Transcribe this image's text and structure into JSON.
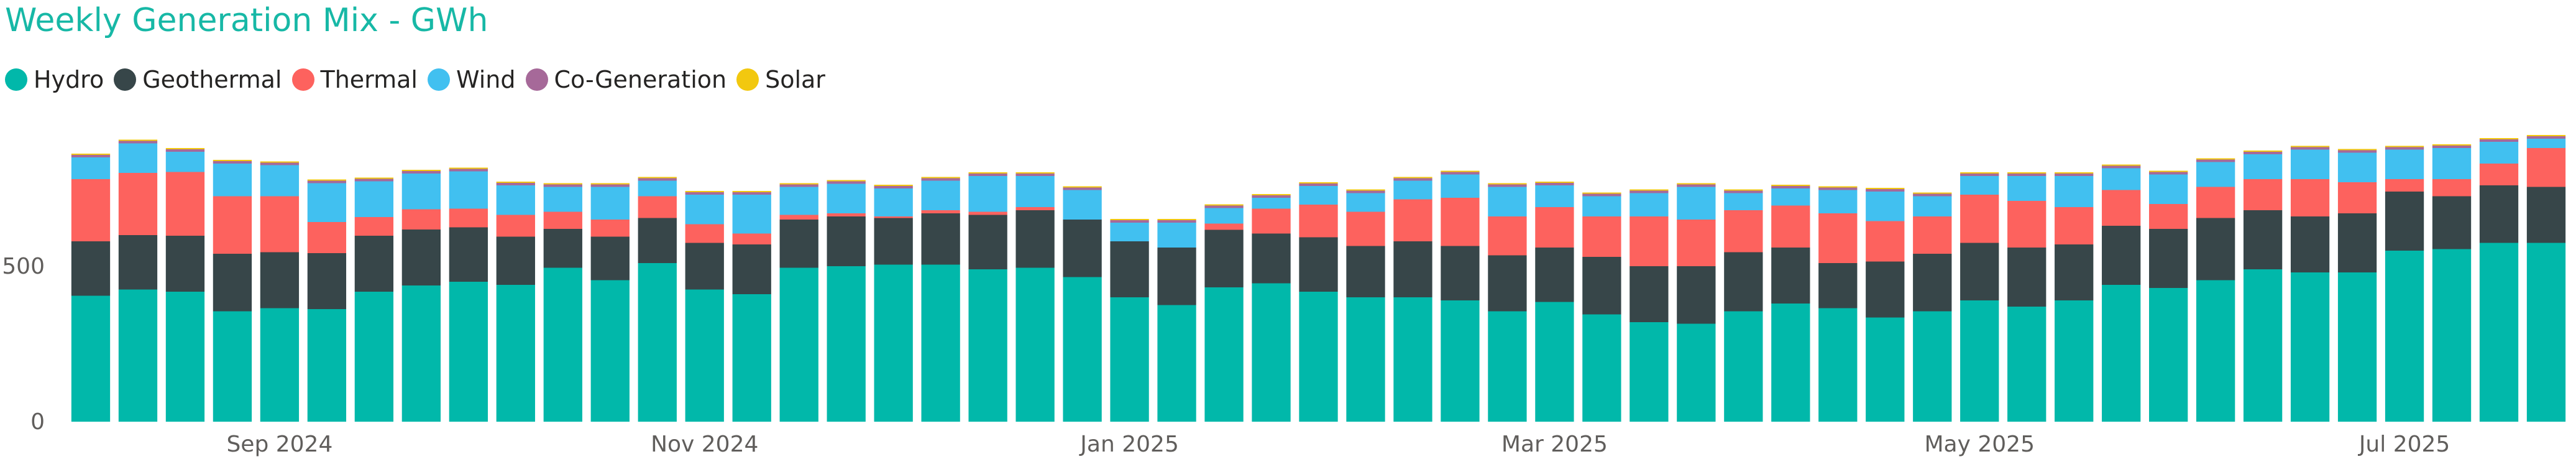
{
  "chart_data": {
    "type": "bar",
    "stacked": true,
    "title": "Weekly Generation Mix - GWh",
    "title_color": "#17B8A6",
    "legend_position": "top-left",
    "x_tick_labels": [
      "Sep 2024",
      "Nov 2024",
      "Jan 2025",
      "Mar 2025",
      "May 2025",
      "Jul 2025"
    ],
    "x_tick_positions": [
      4.5,
      13.5,
      22.5,
      31.5,
      40.5,
      49.5
    ],
    "y_ticks": [
      0,
      500
    ],
    "ylim": [
      0,
      960
    ],
    "grid": false,
    "series": [
      {
        "name": "Hydro",
        "color": "#01B8AA",
        "values": [
          405,
          425,
          418,
          355,
          365,
          362,
          418,
          438,
          450,
          440,
          495,
          455,
          510,
          425,
          410,
          495,
          500,
          505,
          505,
          490,
          495,
          465,
          400,
          375,
          432,
          445,
          418,
          400,
          400,
          390,
          355,
          385,
          345,
          320,
          315,
          355,
          380,
          365,
          335,
          355,
          390,
          370,
          390,
          440,
          430,
          455,
          490,
          480,
          480,
          550,
          555,
          575,
          575
        ]
      },
      {
        "name": "Geothermal",
        "color": "#374649",
        "values": [
          175,
          175,
          180,
          185,
          180,
          180,
          180,
          180,
          175,
          155,
          125,
          140,
          145,
          150,
          160,
          155,
          160,
          150,
          165,
          175,
          185,
          185,
          180,
          185,
          185,
          160,
          175,
          165,
          180,
          175,
          180,
          175,
          185,
          180,
          185,
          190,
          180,
          145,
          180,
          185,
          185,
          190,
          180,
          190,
          190,
          200,
          190,
          180,
          190,
          190,
          170,
          185,
          180
        ]
      },
      {
        "name": "Thermal",
        "color": "#FD625E",
        "values": [
          200,
          200,
          205,
          185,
          180,
          100,
          60,
          65,
          60,
          70,
          55,
          55,
          70,
          60,
          35,
          15,
          10,
          5,
          10,
          10,
          10,
          0,
          0,
          0,
          20,
          80,
          105,
          110,
          135,
          155,
          125,
          130,
          130,
          160,
          150,
          135,
          135,
          160,
          130,
          120,
          155,
          150,
          120,
          115,
          80,
          100,
          100,
          120,
          100,
          40,
          55,
          70,
          125
        ]
      },
      {
        "name": "Wind",
        "color": "#41C0F0",
        "values": [
          70,
          95,
          65,
          105,
          100,
          125,
          115,
          115,
          120,
          95,
          80,
          105,
          50,
          95,
          125,
          90,
          95,
          90,
          95,
          115,
          100,
          95,
          60,
          80,
          50,
          35,
          60,
          60,
          60,
          75,
          95,
          70,
          65,
          75,
          105,
          55,
          55,
          75,
          95,
          65,
          60,
          80,
          100,
          70,
          95,
          80,
          80,
          95,
          95,
          95,
          100,
          70,
          30
        ]
      },
      {
        "name": "Co-Generation",
        "color": "#A66999",
        "values": [
          8,
          8,
          8,
          8,
          8,
          8,
          8,
          8,
          8,
          8,
          8,
          8,
          8,
          8,
          8,
          8,
          8,
          8,
          8,
          8,
          8,
          8,
          8,
          8,
          8,
          8,
          8,
          8,
          8,
          8,
          8,
          8,
          8,
          8,
          8,
          8,
          8,
          8,
          8,
          8,
          8,
          8,
          8,
          8,
          8,
          8,
          8,
          8,
          8,
          8,
          8,
          8,
          8
        ]
      },
      {
        "name": "Solar",
        "color": "#F2C80F",
        "values": [
          4,
          4,
          4,
          4,
          4,
          4,
          4,
          4,
          4,
          4,
          4,
          4,
          4,
          4,
          4,
          4,
          4,
          4,
          4,
          4,
          4,
          4,
          4,
          4,
          4,
          4,
          4,
          4,
          4,
          4,
          4,
          4,
          4,
          4,
          4,
          4,
          4,
          4,
          4,
          4,
          4,
          4,
          4,
          4,
          4,
          4,
          4,
          4,
          4,
          4,
          4,
          4,
          4
        ]
      }
    ]
  }
}
